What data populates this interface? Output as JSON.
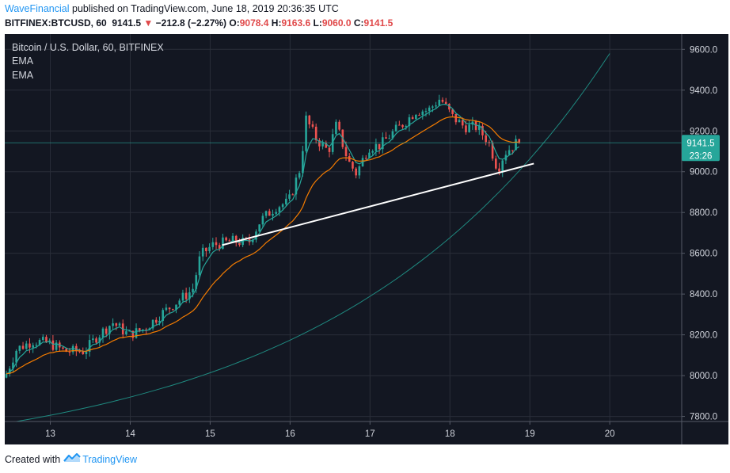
{
  "header": {
    "author": "WaveFinancial",
    "published_text": "published on TradingView.com, June 18, 2019 20:36:35 UTC",
    "symbol": "BITFINEX:BTCUSD, 60",
    "last": "9141.5",
    "change": "−212.8 (−2.27%)",
    "o_label": "O:",
    "o_value": "9078.4",
    "h_label": "H:",
    "h_value": "9163.6",
    "l_label": "L:",
    "l_value": "9060.0",
    "c_label": "C:",
    "c_value": "9141.5"
  },
  "legend": {
    "title": "Bitcoin / U.S. Dollar, 60, BITFINEX",
    "ema1": "EMA",
    "ema2": "EMA"
  },
  "price_tag": {
    "price": "9141.5",
    "countdown": "23:26"
  },
  "footer": {
    "created_with": "Created with",
    "brand": "TradingView"
  },
  "colors": {
    "background": "#131722",
    "grid": "#2a2e39",
    "up": "#26a69a",
    "down": "#ef5350",
    "ema_fast": "#26a69a",
    "ema_slow": "#f57c00",
    "trendline": "#ffffff",
    "curve": "#1f8a80",
    "price_tag": "#26a69a"
  },
  "chart_data": {
    "type": "candlestick",
    "x_ticks": [
      "13",
      "14",
      "15",
      "16",
      "17",
      "18",
      "19",
      "20"
    ],
    "y_ticks": [
      "7800.0",
      "8000.0",
      "8200.0",
      "8400.0",
      "8600.0",
      "8800.0",
      "9000.0",
      "9200.0",
      "9400.0",
      "9600.0"
    ],
    "ylim": [
      7775,
      9675
    ],
    "xlim": [
      12.43,
      20.9
    ],
    "grid": true,
    "last_price": 9141.5,
    "anchors": [
      [
        12.45,
        7990
      ],
      [
        12.6,
        8130
      ],
      [
        12.8,
        8170
      ],
      [
        13.0,
        8160
      ],
      [
        13.2,
        8120
      ],
      [
        13.45,
        8120
      ],
      [
        13.6,
        8190
      ],
      [
        13.8,
        8260
      ],
      [
        14.0,
        8200
      ],
      [
        14.2,
        8230
      ],
      [
        14.4,
        8300
      ],
      [
        14.6,
        8360
      ],
      [
        14.8,
        8420
      ],
      [
        14.9,
        8590
      ],
      [
        15.05,
        8640
      ],
      [
        15.3,
        8660
      ],
      [
        15.5,
        8650
      ],
      [
        15.65,
        8760
      ],
      [
        15.85,
        8830
      ],
      [
        16.0,
        8850
      ],
      [
        16.15,
        9020
      ],
      [
        16.22,
        9260
      ],
      [
        16.35,
        9160
      ],
      [
        16.5,
        9100
      ],
      [
        16.6,
        9230
      ],
      [
        16.75,
        9050
      ],
      [
        16.85,
        8990
      ],
      [
        17.0,
        9120
      ],
      [
        17.15,
        9130
      ],
      [
        17.3,
        9190
      ],
      [
        17.45,
        9240
      ],
      [
        17.6,
        9300
      ],
      [
        17.75,
        9300
      ],
      [
        17.9,
        9360
      ],
      [
        18.05,
        9270
      ],
      [
        18.2,
        9220
      ],
      [
        18.35,
        9220
      ],
      [
        18.5,
        9150
      ],
      [
        18.62,
        9010
      ],
      [
        18.7,
        9090
      ],
      [
        18.85,
        9141.5
      ]
    ],
    "trendline": {
      "from": [
        15.15,
        8640
      ],
      "to": [
        19.05,
        9040
      ]
    },
    "curve": {
      "from_x": 12.5,
      "to_x": 20.0,
      "from_y": 7770,
      "to_y": 9580
    }
  }
}
